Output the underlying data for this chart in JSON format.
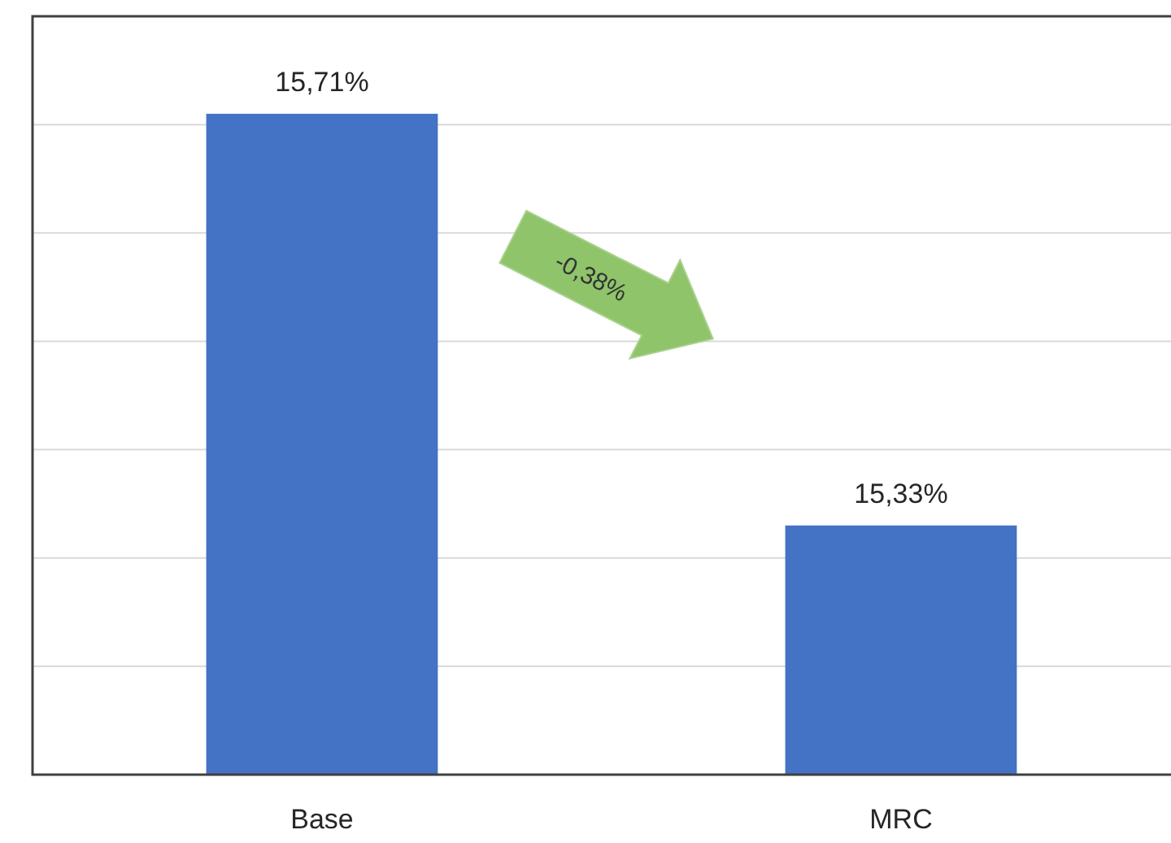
{
  "chart_data": {
    "type": "bar",
    "categories": [
      "Base",
      "MRC"
    ],
    "values": [
      15.71,
      15.33
    ],
    "color": "#4472c4",
    "value_labels": [
      "15,71%",
      "15,33%"
    ],
    "ylim": [
      15.1,
      15.8
    ],
    "yticks": [
      {
        "value": 15.1,
        "label": null
      },
      {
        "value": 15.2,
        "label": null
      },
      {
        "value": 15.3,
        "label": null
      },
      {
        "value": 15.4,
        "label": null
      },
      {
        "value": 15.5,
        "label": null
      },
      {
        "value": 15.6,
        "label": null
      },
      {
        "value": 15.7,
        "label": null
      },
      {
        "value": 15.8,
        "label": null
      }
    ],
    "grid": "y",
    "tick_labels": "x",
    "annotations": [
      "-0,38%"
    ]
  }
}
